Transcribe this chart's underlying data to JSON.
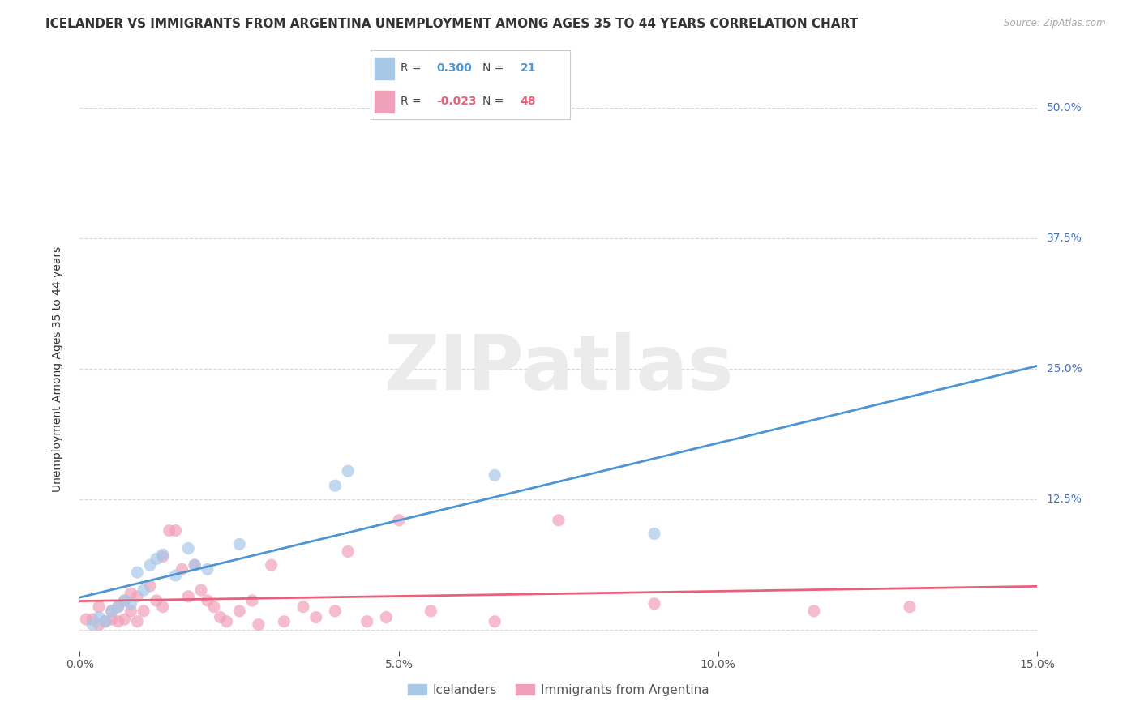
{
  "title": "ICELANDER VS IMMIGRANTS FROM ARGENTINA UNEMPLOYMENT AMONG AGES 35 TO 44 YEARS CORRELATION CHART",
  "source": "Source: ZipAtlas.com",
  "ylabel": "Unemployment Among Ages 35 to 44 years",
  "xlim": [
    0.0,
    0.15
  ],
  "ylim": [
    -0.02,
    0.52
  ],
  "xticks": [
    0.0,
    0.05,
    0.1,
    0.15
  ],
  "yticks": [
    0.0,
    0.125,
    0.25,
    0.375,
    0.5
  ],
  "ytick_labels": [
    "",
    "12.5%",
    "25.0%",
    "37.5%",
    "50.0%"
  ],
  "legend_labels": [
    "Icelanders",
    "Immigrants from Argentina"
  ],
  "icelander_R": 0.3,
  "icelander_N": 21,
  "argentina_R": -0.023,
  "argentina_N": 48,
  "icelander_color": "#a8c8e8",
  "argentina_color": "#f0a0b8",
  "icelander_line_color": "#4d94d4",
  "argentina_line_color": "#e8607a",
  "icelander_x": [
    0.002,
    0.003,
    0.004,
    0.005,
    0.006,
    0.007,
    0.008,
    0.009,
    0.01,
    0.011,
    0.012,
    0.013,
    0.015,
    0.017,
    0.018,
    0.02,
    0.025,
    0.04,
    0.042,
    0.065,
    0.09
  ],
  "icelander_y": [
    0.005,
    0.012,
    0.008,
    0.018,
    0.022,
    0.028,
    0.025,
    0.055,
    0.038,
    0.062,
    0.068,
    0.072,
    0.052,
    0.078,
    0.062,
    0.058,
    0.082,
    0.138,
    0.152,
    0.148,
    0.092
  ],
  "argentina_x": [
    0.001,
    0.002,
    0.003,
    0.003,
    0.004,
    0.005,
    0.005,
    0.006,
    0.006,
    0.007,
    0.007,
    0.008,
    0.008,
    0.009,
    0.009,
    0.01,
    0.011,
    0.012,
    0.013,
    0.013,
    0.014,
    0.015,
    0.016,
    0.017,
    0.018,
    0.019,
    0.02,
    0.021,
    0.022,
    0.023,
    0.025,
    0.027,
    0.028,
    0.03,
    0.032,
    0.035,
    0.037,
    0.04,
    0.042,
    0.045,
    0.048,
    0.05,
    0.055,
    0.065,
    0.075,
    0.09,
    0.115,
    0.13
  ],
  "argentina_y": [
    0.01,
    0.01,
    0.005,
    0.022,
    0.008,
    0.018,
    0.01,
    0.008,
    0.022,
    0.028,
    0.01,
    0.035,
    0.018,
    0.032,
    0.008,
    0.018,
    0.042,
    0.028,
    0.022,
    0.07,
    0.095,
    0.095,
    0.058,
    0.032,
    0.062,
    0.038,
    0.028,
    0.022,
    0.012,
    0.008,
    0.018,
    0.028,
    0.005,
    0.062,
    0.008,
    0.022,
    0.012,
    0.018,
    0.075,
    0.008,
    0.012,
    0.105,
    0.018,
    0.008,
    0.105,
    0.025,
    0.018,
    0.022
  ],
  "watermark": "ZIPatlas",
  "watermark_color": "#ebebeb",
  "background_color": "#ffffff",
  "grid_color": "#d8d8d8",
  "title_fontsize": 11,
  "label_fontsize": 10,
  "tick_fontsize": 10,
  "legend_fontsize": 11
}
